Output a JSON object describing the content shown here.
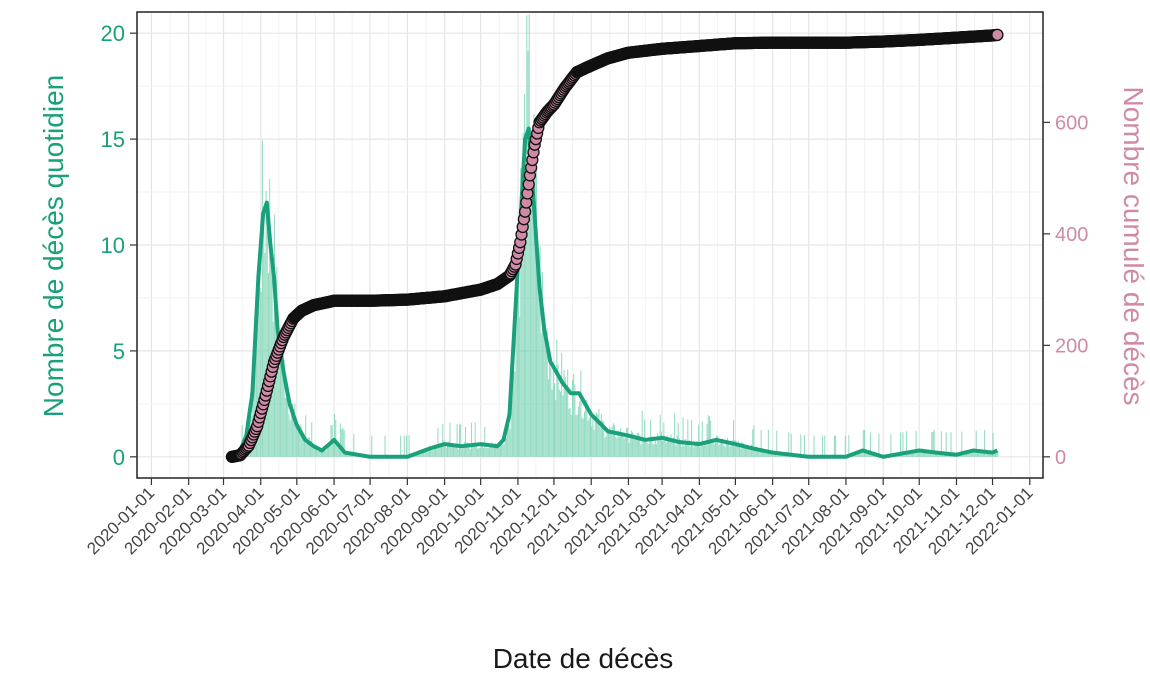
{
  "chart_data": {
    "type": "bar",
    "xlabel": "Date de décès",
    "ylabel": "Nombre de décès quotidien",
    "ylabel_right": "Nombre cumulé de décès",
    "x_ticks": [
      "2020-01-01",
      "2020-02-01",
      "2020-03-01",
      "2020-04-01",
      "2020-05-01",
      "2020-06-01",
      "2020-07-01",
      "2020-08-01",
      "2020-09-01",
      "2020-10-01",
      "2020-11-01",
      "2020-12-01",
      "2021-01-01",
      "2021-02-01",
      "2021-03-01",
      "2021-04-01",
      "2021-05-01",
      "2021-06-01",
      "2021-07-01",
      "2021-08-01",
      "2021-09-01",
      "2021-10-01",
      "2021-11-01",
      "2021-12-01",
      "2022-01-01"
    ],
    "y_ticks": [
      "0",
      "5",
      "10",
      "15",
      "20"
    ],
    "y2_ticks": [
      "0",
      "200",
      "400",
      "600"
    ],
    "ylim": [
      -1,
      21
    ],
    "y2lim": [
      -38,
      798
    ],
    "xlim": [
      "2019-12-20",
      "2022-01-12"
    ],
    "grid": true,
    "colors": {
      "daily": "#1aa07a",
      "daily_bars": "#6fcfae",
      "cumulative_fill": "#d08aa8",
      "cumulative_edge": "#111111"
    },
    "series": [
      {
        "name": "Nombre de décès quotidien",
        "kind": "smoothed_line",
        "x": [
          "2020-03-10",
          "2020-03-15",
          "2020-03-20",
          "2020-03-25",
          "2020-03-30",
          "2020-04-03",
          "2020-04-06",
          "2020-04-09",
          "2020-04-12",
          "2020-04-15",
          "2020-04-20",
          "2020-04-25",
          "2020-05-01",
          "2020-05-08",
          "2020-05-15",
          "2020-05-22",
          "2020-06-01",
          "2020-06-10",
          "2020-07-01",
          "2020-08-01",
          "2020-08-20",
          "2020-09-01",
          "2020-09-15",
          "2020-10-01",
          "2020-10-15",
          "2020-10-20",
          "2020-10-25",
          "2020-10-28",
          "2020-11-01",
          "2020-11-04",
          "2020-11-07",
          "2020-11-10",
          "2020-11-13",
          "2020-11-16",
          "2020-11-19",
          "2020-11-23",
          "2020-11-28",
          "2020-12-03",
          "2020-12-08",
          "2020-12-15",
          "2020-12-22",
          "2021-01-01",
          "2021-01-15",
          "2021-02-01",
          "2021-02-15",
          "2021-03-01",
          "2021-03-15",
          "2021-04-01",
          "2021-04-15",
          "2021-05-01",
          "2021-05-15",
          "2021-06-01",
          "2021-07-01",
          "2021-08-01",
          "2021-08-15",
          "2021-09-01",
          "2021-10-01",
          "2021-10-15",
          "2021-11-01",
          "2021-11-15",
          "2021-12-01",
          "2021-12-05"
        ],
        "values": [
          0,
          0.3,
          1,
          3,
          8.5,
          11.5,
          12,
          10,
          8.5,
          6,
          4,
          2.5,
          1.5,
          0.8,
          0.5,
          0.3,
          0.8,
          0.2,
          0,
          0,
          0.4,
          0.6,
          0.5,
          0.6,
          0.5,
          0.8,
          2,
          5,
          9,
          12,
          15,
          15.5,
          13,
          10.5,
          8,
          6,
          4.5,
          4,
          3.5,
          3,
          3,
          2,
          1.2,
          1,
          0.8,
          0.9,
          0.7,
          0.6,
          0.8,
          0.6,
          0.4,
          0.2,
          0,
          0,
          0.3,
          0,
          0.3,
          0.2,
          0.1,
          0.3,
          0.2,
          0.3
        ]
      },
      {
        "name": "Nombre cumulé de décès",
        "kind": "points",
        "x": [
          "2020-03-08",
          "2020-03-15",
          "2020-03-22",
          "2020-03-29",
          "2020-04-05",
          "2020-04-12",
          "2020-04-20",
          "2020-04-28",
          "2020-05-05",
          "2020-05-15",
          "2020-06-01",
          "2020-07-01",
          "2020-08-01",
          "2020-09-01",
          "2020-10-01",
          "2020-10-15",
          "2020-10-25",
          "2020-10-30",
          "2020-11-03",
          "2020-11-07",
          "2020-11-11",
          "2020-11-15",
          "2020-11-19",
          "2020-11-25",
          "2020-12-01",
          "2020-12-10",
          "2020-12-20",
          "2021-01-01",
          "2021-01-15",
          "2021-02-01",
          "2021-03-01",
          "2021-04-01",
          "2021-05-01",
          "2021-06-01",
          "2021-07-01",
          "2021-08-01",
          "2021-09-01",
          "2021-10-01",
          "2021-11-01",
          "2021-12-01",
          "2021-12-05"
        ],
        "values": [
          0,
          3,
          20,
          55,
          110,
          170,
          215,
          248,
          262,
          272,
          280,
          280,
          282,
          288,
          300,
          310,
          325,
          345,
          385,
          440,
          505,
          560,
          600,
          618,
          632,
          662,
          690,
          702,
          715,
          725,
          732,
          737,
          742,
          743,
          743,
          743,
          745,
          748,
          752,
          756,
          757
        ]
      }
    ]
  }
}
